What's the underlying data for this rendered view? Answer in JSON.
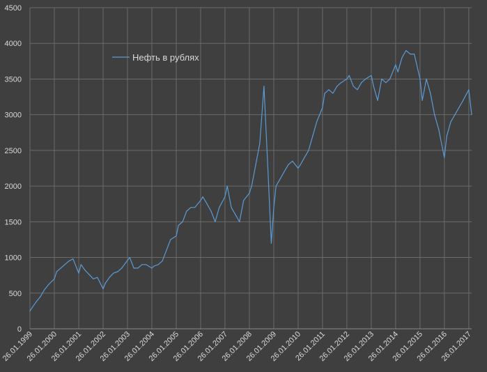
{
  "chart_data": {
    "type": "line",
    "title": "",
    "xlabel": "",
    "ylabel": "",
    "ylim": [
      0,
      4500
    ],
    "yticks": [
      0,
      500,
      1000,
      1500,
      2000,
      2500,
      3000,
      3500,
      4000,
      4500
    ],
    "xtick_labels": [
      "26.01.1999",
      "26.01.2000",
      "26.01.2001",
      "26.01.2002",
      "26.01.2003",
      "26.01.2004",
      "26.01.2005",
      "26.01.2006",
      "26.01.2007",
      "26.01.2008",
      "26.01.2009",
      "26.01.2010",
      "26.01.2011",
      "26.01.2012",
      "26.01.2013",
      "26.01.2014",
      "26.01.2015",
      "26.01.2016",
      "26.01.2017"
    ],
    "xlim": [
      "1999-01-26",
      "2017-03-10"
    ],
    "grid": true,
    "legend_position": "top-left",
    "colors": {
      "background": "#3f3f3f",
      "gridline": "#6b6b6b",
      "series": "#5b9bd5",
      "text": "#d9d9d9"
    },
    "series": [
      {
        "name": "Нефть в рублях",
        "x": [
          "1999-01-26",
          "1999-03-01",
          "1999-05-01",
          "1999-07-01",
          "1999-09-01",
          "1999-11-01",
          "2000-01-26",
          "2000-03-01",
          "2000-05-01",
          "2000-07-01",
          "2000-09-01",
          "2000-11-01",
          "2001-01-26",
          "2001-03-01",
          "2001-05-01",
          "2001-07-01",
          "2001-09-01",
          "2001-11-01",
          "2002-01-26",
          "2002-03-01",
          "2002-05-01",
          "2002-07-01",
          "2002-09-01",
          "2002-11-01",
          "2003-01-26",
          "2003-03-01",
          "2003-05-01",
          "2003-07-01",
          "2003-09-01",
          "2003-11-01",
          "2004-01-26",
          "2004-03-01",
          "2004-05-01",
          "2004-07-01",
          "2004-09-01",
          "2004-11-01",
          "2005-01-26",
          "2005-03-01",
          "2005-05-01",
          "2005-07-01",
          "2005-09-01",
          "2005-11-01",
          "2006-01-26",
          "2006-03-01",
          "2006-05-01",
          "2006-07-01",
          "2006-09-01",
          "2006-11-01",
          "2007-01-26",
          "2007-03-01",
          "2007-05-01",
          "2007-07-01",
          "2007-09-01",
          "2007-11-01",
          "2008-01-26",
          "2008-03-01",
          "2008-05-01",
          "2008-07-01",
          "2008-09-01",
          "2008-11-01",
          "2008-12-20",
          "2009-01-26",
          "2009-03-01",
          "2009-05-01",
          "2009-07-01",
          "2009-09-01",
          "2009-11-01",
          "2010-01-26",
          "2010-03-01",
          "2010-05-01",
          "2010-07-01",
          "2010-09-01",
          "2010-11-01",
          "2011-01-26",
          "2011-03-01",
          "2011-05-01",
          "2011-07-01",
          "2011-09-01",
          "2011-11-01",
          "2012-01-26",
          "2012-03-01",
          "2012-05-01",
          "2012-07-01",
          "2012-09-01",
          "2012-11-01",
          "2013-01-26",
          "2013-03-01",
          "2013-05-01",
          "2013-07-01",
          "2013-09-01",
          "2013-11-01",
          "2014-01-26",
          "2014-03-01",
          "2014-05-01",
          "2014-07-01",
          "2014-09-01",
          "2014-11-01",
          "2015-01-26",
          "2015-03-01",
          "2015-05-01",
          "2015-07-01",
          "2015-09-01",
          "2015-11-01",
          "2016-01-26",
          "2016-03-01",
          "2016-05-01",
          "2016-07-01",
          "2016-09-01",
          "2016-11-01",
          "2017-01-26",
          "2017-03-10"
        ],
        "values": [
          250,
          300,
          380,
          450,
          550,
          620,
          700,
          800,
          850,
          900,
          950,
          980,
          780,
          900,
          820,
          760,
          700,
          720,
          560,
          640,
          720,
          780,
          800,
          850,
          960,
          1000,
          850,
          850,
          900,
          900,
          850,
          880,
          900,
          950,
          1100,
          1250,
          1300,
          1450,
          1500,
          1650,
          1700,
          1700,
          1800,
          1850,
          1750,
          1650,
          1500,
          1700,
          1850,
          2000,
          1700,
          1600,
          1500,
          1800,
          1900,
          2000,
          2300,
          2600,
          3400,
          2200,
          1200,
          1700,
          2000,
          2100,
          2200,
          2300,
          2350,
          2250,
          2300,
          2400,
          2500,
          2700,
          2900,
          3100,
          3300,
          3350,
          3300,
          3400,
          3450,
          3500,
          3550,
          3400,
          3350,
          3450,
          3500,
          3550,
          3400,
          3200,
          3500,
          3450,
          3500,
          3700,
          3600,
          3800,
          3900,
          3850,
          3850,
          3500,
          3200,
          3500,
          3300,
          3000,
          2800,
          2400,
          2700,
          2900,
          3000,
          3100,
          3200,
          3350,
          3000
        ]
      }
    ]
  }
}
